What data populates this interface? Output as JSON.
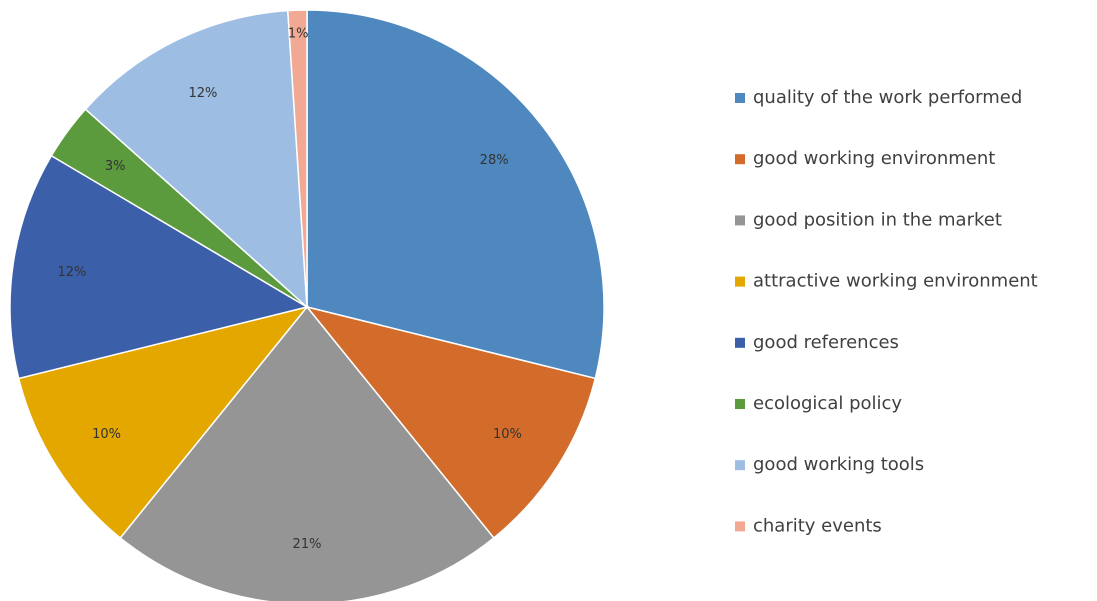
{
  "chart_data": {
    "type": "pie",
    "categories": [
      "quality of the work performed",
      "good working environment",
      "good position in the market",
      "attractive working environment",
      "good references",
      "ecological policy",
      "good working tools",
      "charity events"
    ],
    "values": [
      28,
      10,
      21,
      10,
      12,
      3,
      12,
      1
    ],
    "value_labels": [
      "28%",
      "10%",
      "21%",
      "10%",
      "12%",
      "3%",
      "12%",
      "1%"
    ],
    "colors": [
      "#4f87bf",
      "#d36c2b",
      "#959595",
      "#e3a700",
      "#3c5fa9",
      "#5b9a3d",
      "#9dbde3",
      "#f2a993"
    ],
    "legend": "right"
  }
}
